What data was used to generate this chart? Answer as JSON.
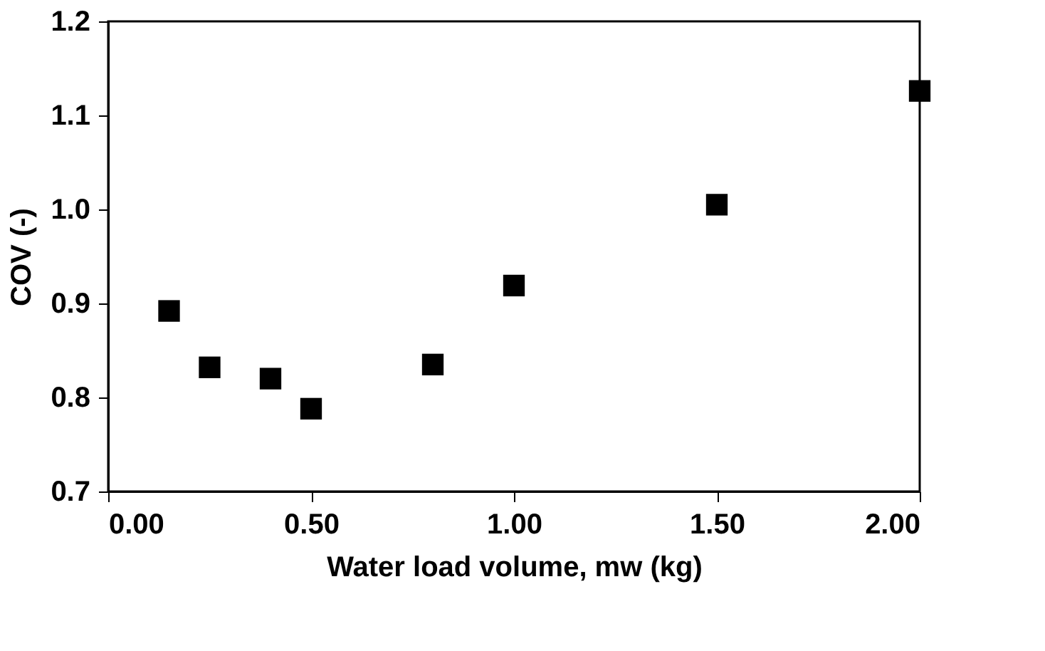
{
  "chart_data": {
    "type": "scatter",
    "xlabel": "Water load volume, mw (kg)",
    "ylabel": "COV (-)",
    "x": [
      0.15,
      0.25,
      0.4,
      0.5,
      0.8,
      1.0,
      1.5,
      2.0
    ],
    "values": [
      0.892,
      0.832,
      0.82,
      0.788,
      0.835,
      0.919,
      1.005,
      1.126
    ],
    "color": "#000000",
    "marker": "square",
    "xlim": [
      0,
      2.0
    ],
    "xticks": [
      {
        "value": 0,
        "label": "0.00"
      },
      {
        "value": 0.5,
        "label": "0.50"
      },
      {
        "value": 1.0,
        "label": "1.00"
      },
      {
        "value": 1.5,
        "label": "1.50"
      },
      {
        "value": 2.0,
        "label": "2.00"
      }
    ],
    "ylim": [
      0.7,
      1.2
    ],
    "yticks": [
      {
        "value": 0.7,
        "label": "0.7"
      },
      {
        "value": 0.8,
        "label": "0.8"
      },
      {
        "value": 0.9,
        "label": "0.9"
      },
      {
        "value": 1.0,
        "label": "1.0"
      },
      {
        "value": 1.1,
        "label": "1.1"
      },
      {
        "value": 1.2,
        "label": "1.2"
      }
    ],
    "grid": false
  }
}
